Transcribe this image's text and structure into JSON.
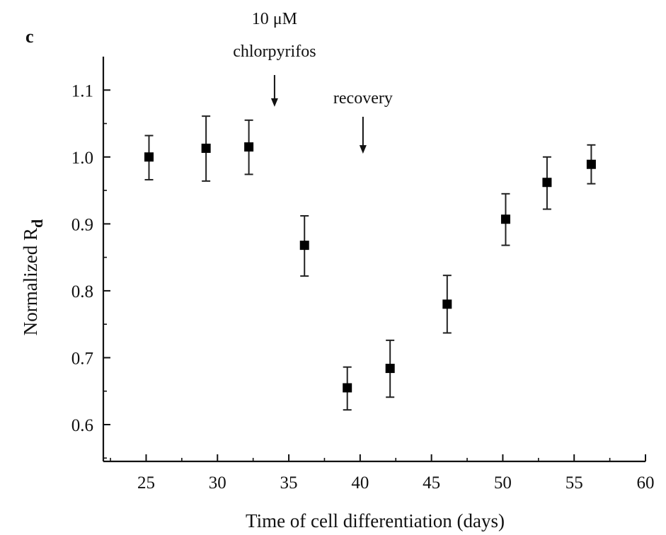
{
  "chart_data": {
    "type": "scatter",
    "panel_label": "c",
    "xlabel": "Time of cell differentiation (days)",
    "ylabel_main": "Normalized R",
    "ylabel_sub": "d",
    "xlim": [
      22,
      60
    ],
    "ylim": [
      0.545,
      1.15
    ],
    "x_ticks": [
      25,
      30,
      35,
      40,
      45,
      50,
      55,
      60
    ],
    "y_ticks": [
      0.6,
      0.7,
      0.8,
      0.9,
      1.0,
      1.1
    ],
    "x_tick_labels": [
      "25",
      "30",
      "35",
      "40",
      "45",
      "50",
      "55",
      "60"
    ],
    "y_tick_labels": [
      "0.6",
      "0.7",
      "0.8",
      "0.9",
      "1.0",
      "1.1"
    ],
    "points": [
      {
        "x": 25.2,
        "y": 1.0,
        "err_low": 0.966,
        "err_high": 1.032
      },
      {
        "x": 29.2,
        "y": 1.013,
        "err_low": 0.964,
        "err_high": 1.061
      },
      {
        "x": 32.2,
        "y": 1.015,
        "err_low": 0.974,
        "err_high": 1.055
      },
      {
        "x": 36.1,
        "y": 0.868,
        "err_low": 0.822,
        "err_high": 0.912
      },
      {
        "x": 39.1,
        "y": 0.655,
        "err_low": 0.622,
        "err_high": 0.686
      },
      {
        "x": 42.1,
        "y": 0.684,
        "err_low": 0.641,
        "err_high": 0.726
      },
      {
        "x": 46.1,
        "y": 0.78,
        "err_low": 0.737,
        "err_high": 0.823
      },
      {
        "x": 50.2,
        "y": 0.907,
        "err_low": 0.868,
        "err_high": 0.945
      },
      {
        "x": 53.1,
        "y": 0.962,
        "err_low": 0.922,
        "err_high": 1.0
      },
      {
        "x": 56.2,
        "y": 0.989,
        "err_low": 0.96,
        "err_high": 1.018
      }
    ],
    "annotations": [
      {
        "lines": [
          "10 μM",
          "chlorpyrifos"
        ],
        "arrow_x": 34.0,
        "arrow_to_y": 1.075
      },
      {
        "lines": [
          "recovery"
        ],
        "arrow_x": 40.2,
        "arrow_to_y": 1.005
      }
    ],
    "grid": false,
    "legend": "none"
  }
}
